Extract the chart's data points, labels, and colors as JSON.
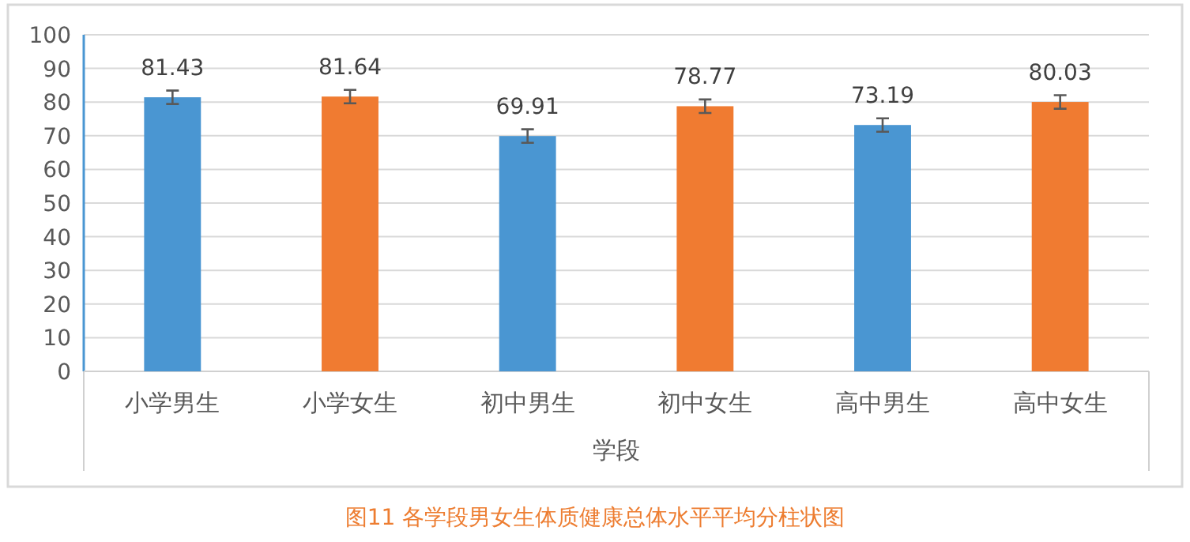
{
  "chart_data": {
    "type": "bar",
    "title": "图11 各学段男女生体质健康总体水平平均分柱状图",
    "xlabel": "学段",
    "categories": [
      "小学男生",
      "小学女生",
      "初中男生",
      "初中女生",
      "高中男生",
      "高中女生"
    ],
    "values": [
      81.43,
      81.64,
      69.91,
      78.77,
      73.19,
      80.03
    ],
    "colors": [
      "#4a96d2",
      "#f07b31",
      "#4a96d2",
      "#f07b31",
      "#4a96d2",
      "#f07b31"
    ],
    "errors": [
      2,
      2,
      2,
      2,
      2,
      2
    ],
    "ylim": [
      0,
      100
    ],
    "yticks": [
      0,
      10,
      20,
      30,
      40,
      50,
      60,
      70,
      80,
      90,
      100
    ],
    "grid": "y",
    "data_labels": true
  }
}
